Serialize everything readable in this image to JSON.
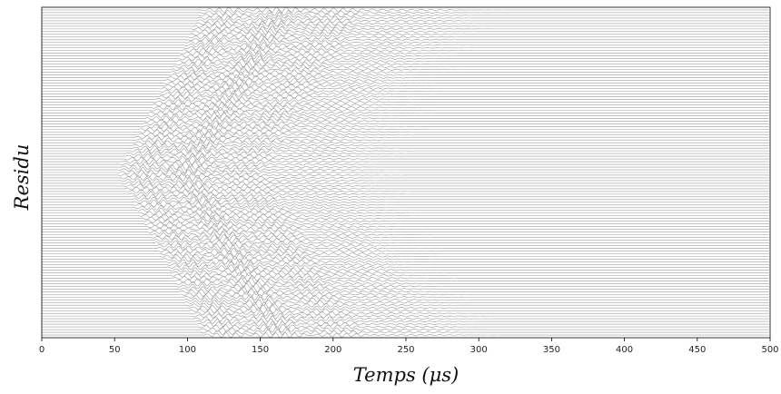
{
  "chart_data": {
    "type": "line",
    "title": "",
    "xlabel": "Temps (μs)",
    "ylabel": "Residu",
    "xlim": [
      0,
      500
    ],
    "xticks": [
      0,
      50,
      100,
      150,
      200,
      250,
      300,
      350,
      400,
      450,
      500
    ],
    "xtick_labels": [
      "0",
      "50",
      "100",
      "150",
      "200",
      "250",
      "300",
      "350",
      "400",
      "450",
      "500"
    ],
    "yticks_visible": false,
    "grid": false,
    "legend": "none",
    "trace_count": 121,
    "arrival_profile": {
      "description_units": "microseconds",
      "earliest_arrival_center_us": 58,
      "latest_arrival_edge_us": 120,
      "wavefront_width_us": 100
    },
    "colors": {
      "trace": "#9a9a9a",
      "axis": "#000000"
    }
  }
}
